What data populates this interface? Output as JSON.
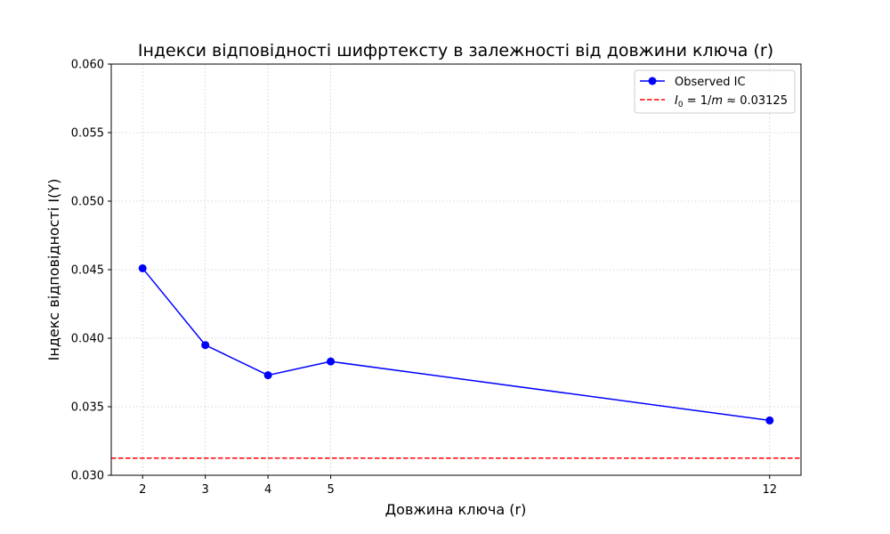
{
  "chart_data": {
    "type": "line",
    "title": "Індекси відповідності шифртексту в залежності від довжини ключа (r)",
    "xlabel": "Довжина ключа (r)",
    "ylabel": "Індекс відповідності I(Y)",
    "xlim": [
      1.5,
      12.5
    ],
    "ylim": [
      0.03,
      0.06
    ],
    "xticks": [
      2,
      3,
      4,
      5,
      12
    ],
    "yticks": [
      0.03,
      0.035,
      0.04,
      0.045,
      0.05,
      0.055,
      0.06
    ],
    "ytick_labels": [
      "0.030",
      "0.035",
      "0.040",
      "0.045",
      "0.050",
      "0.055",
      "0.060"
    ],
    "grid": true,
    "legend_position": "top-right",
    "series": [
      {
        "name": "Observed IC",
        "x": [
          2,
          3,
          4,
          5,
          12
        ],
        "y": [
          0.0451,
          0.0395,
          0.0373,
          0.0383,
          0.034
        ],
        "color": "#0000ff",
        "marker": "circle"
      }
    ],
    "reference_lines": [
      {
        "name_parts": [
          "I",
          "0",
          " = 1/",
          "m",
          " ≈ 0.03125"
        ],
        "y": 0.03125,
        "color": "#ff0000",
        "style": "dashed"
      }
    ]
  }
}
